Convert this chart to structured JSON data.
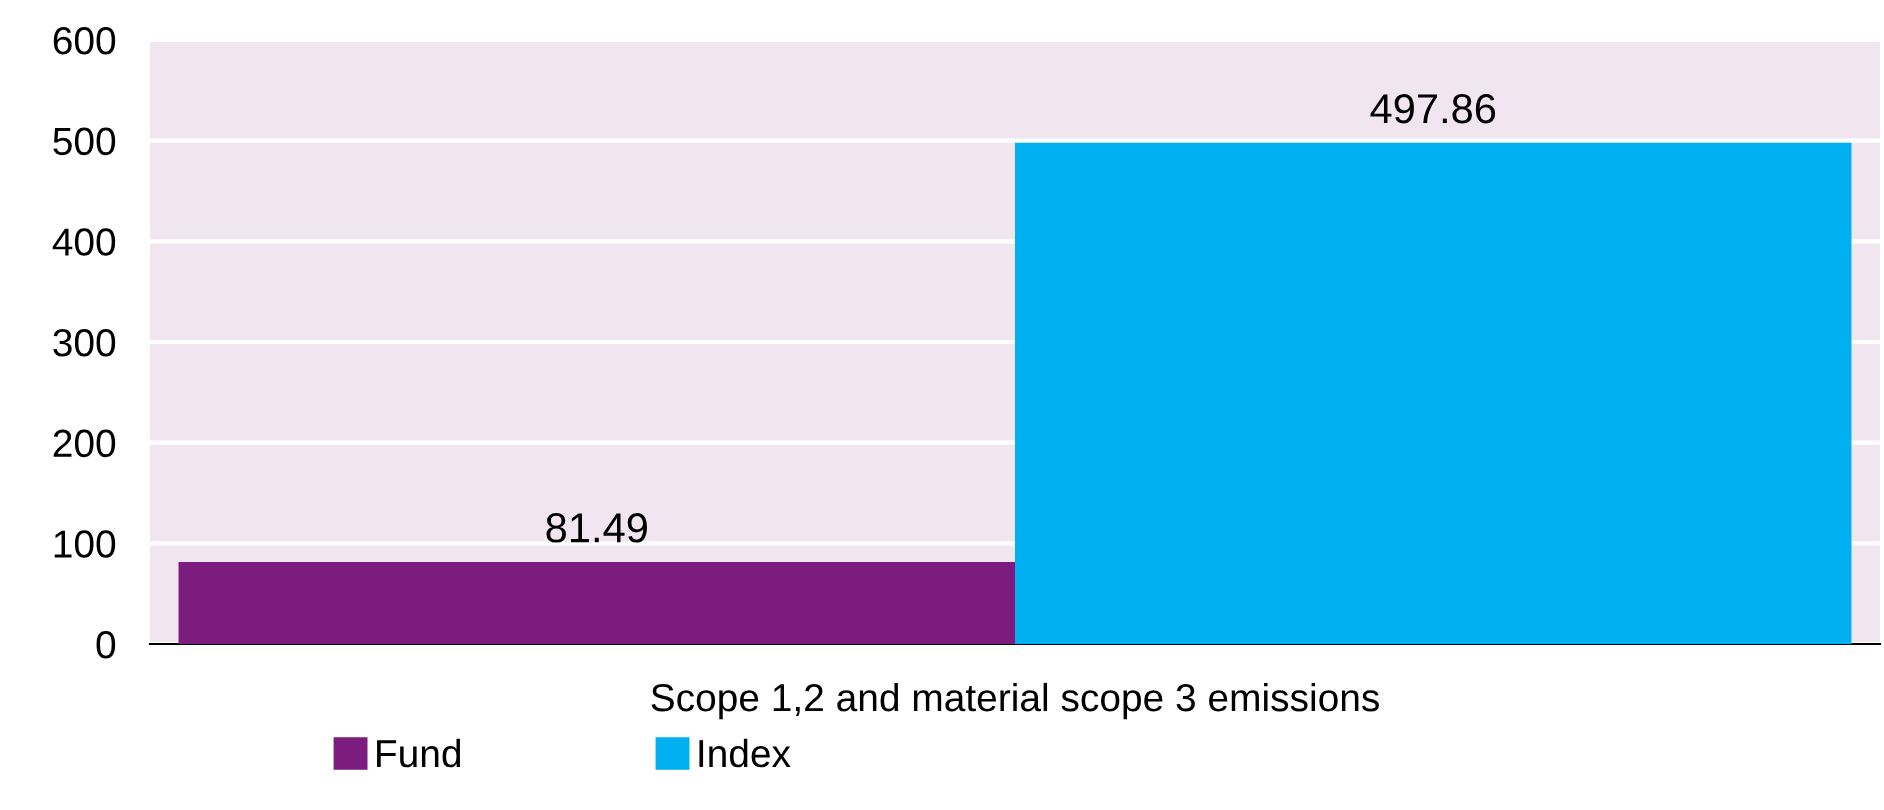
{
  "chart_data": {
    "type": "bar",
    "categories": [
      "Scope 1,2 and material scope 3 emissions"
    ],
    "series": [
      {
        "name": "Fund",
        "color": "#7b1c7e",
        "values": [
          81.49
        ]
      },
      {
        "name": "Index",
        "color": "#00b0f0",
        "values": [
          497.86
        ]
      }
    ],
    "ylim": [
      0,
      600
    ],
    "yticks": [
      0,
      100,
      200,
      300,
      400,
      500,
      600
    ],
    "grid": "y",
    "legend": "bottom",
    "data_labels": true
  }
}
